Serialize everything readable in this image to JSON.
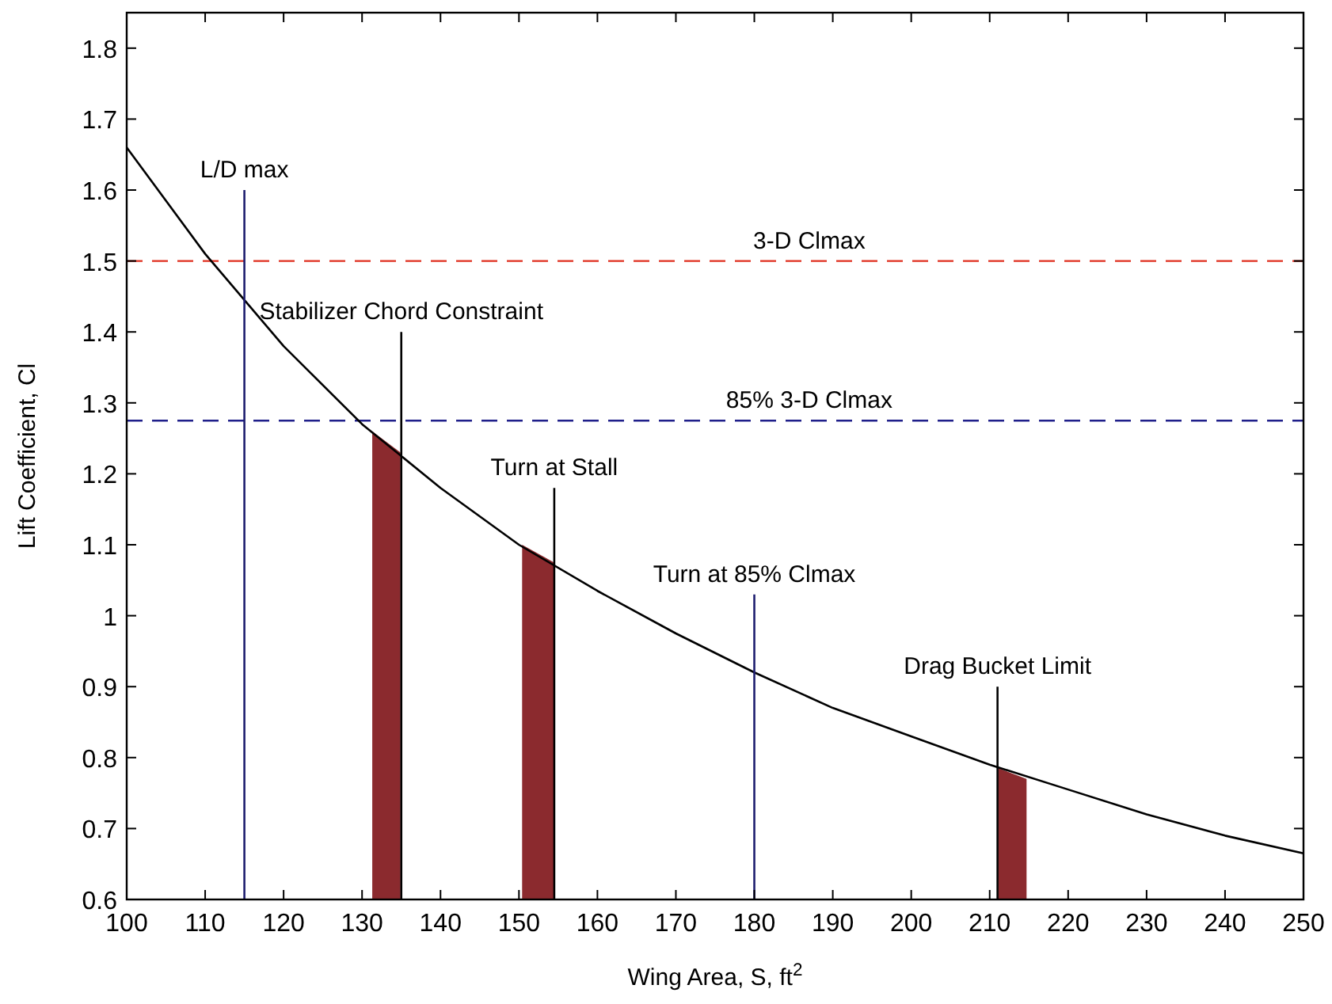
{
  "chart_data": {
    "type": "line",
    "xlabel": "Wing Area, S, ft$^{2}$",
    "ylabel": "Lift Coefficient, Cl",
    "xlim": [
      100,
      250
    ],
    "ylim": [
      0.6,
      1.85
    ],
    "xticks": [
      100,
      110,
      120,
      130,
      140,
      150,
      160,
      170,
      180,
      190,
      200,
      210,
      220,
      230,
      240,
      250
    ],
    "yticks": [
      0.6,
      0.7,
      0.8,
      0.9,
      1,
      1.1,
      1.2,
      1.3,
      1.4,
      1.5,
      1.6,
      1.7,
      1.8
    ],
    "series": [
      {
        "type": "area",
        "color": "#8b2a2e",
        "x": [
          131.3,
          134.9
        ],
        "values": [
          1.26,
          1.23
        ]
      },
      {
        "type": "area",
        "color": "#8b2a2e",
        "x": [
          150.4,
          154.5
        ],
        "values": [
          1.1,
          1.075
        ]
      },
      {
        "type": "area",
        "color": "#8b2a2e",
        "x": [
          211.1,
          214.7
        ],
        "values": [
          0.785,
          0.77
        ]
      },
      {
        "color": "#000000",
        "x": [
          100,
          110,
          120,
          130,
          140,
          150,
          160,
          170,
          180,
          190,
          200,
          210,
          220,
          230,
          240,
          250
        ],
        "values": [
          1.66,
          1.51,
          1.38,
          1.27,
          1.18,
          1.1,
          1.035,
          0.975,
          0.92,
          0.87,
          0.83,
          0.79,
          0.755,
          0.72,
          0.69,
          0.665
        ]
      },
      {
        "name": "L/D max",
        "color": "#1f1f70",
        "x": [
          115,
          115
        ],
        "values": [
          0.6,
          1.6
        ]
      },
      {
        "name": "Stabilizer Chord Constraint",
        "color": "#000000",
        "x": [
          135,
          135
        ],
        "values": [
          0.6,
          1.4
        ]
      },
      {
        "name": "Turn at Stall",
        "color": "#000000",
        "x": [
          154.5,
          154.5
        ],
        "values": [
          0.6,
          1.18
        ]
      },
      {
        "name": "Turn at 85% Clmax",
        "color": "#1f1f70",
        "x": [
          180,
          180
        ],
        "values": [
          0.6,
          1.03
        ]
      },
      {
        "name": "Drag Bucket Limit",
        "color": "#000000",
        "x": [
          211,
          211
        ],
        "values": [
          0.6,
          0.9
        ]
      }
    ],
    "ref_lines": [
      {
        "axis": "y",
        "value": 1.5,
        "label": "3-D Clmax",
        "color": "#e03020",
        "line_style": "dashed"
      },
      {
        "axis": "y",
        "value": 1.275,
        "label": "85% 3-D Clmax",
        "color": "#1f1f8a",
        "line_style": "dashed"
      }
    ]
  }
}
